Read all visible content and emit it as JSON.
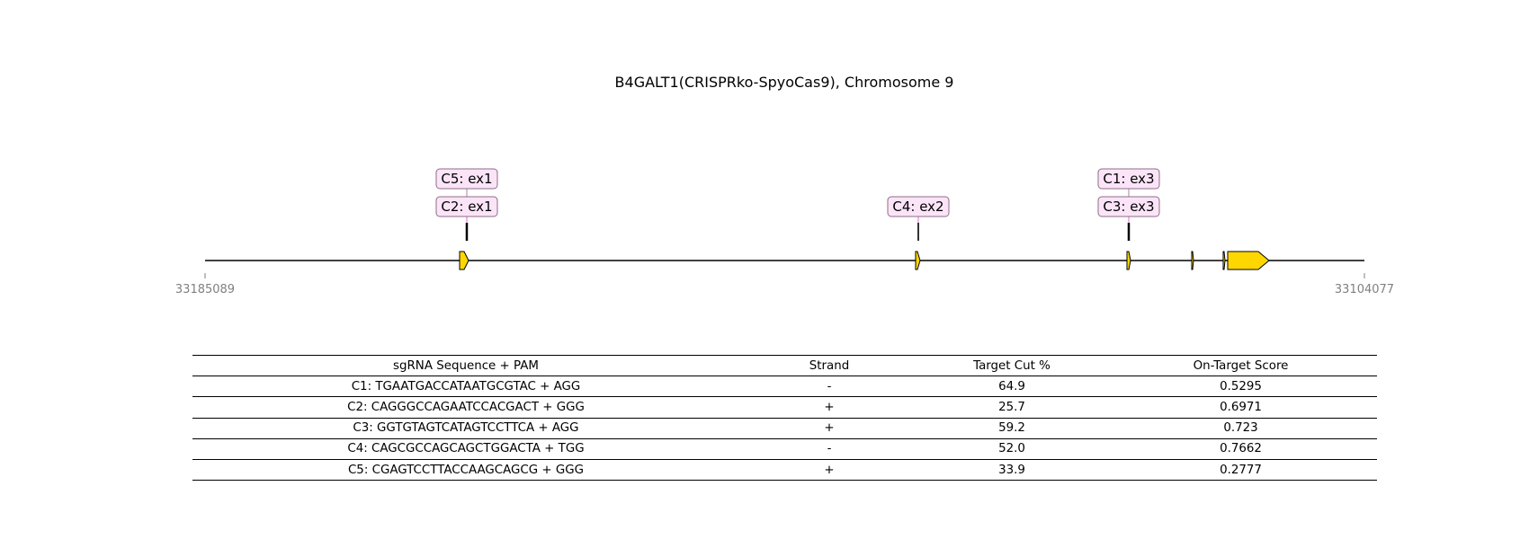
{
  "title": "B4GALT1(CRISPRko-SpyoCas9), Chromosome 9",
  "axis": {
    "left_label": "33185089",
    "right_label": "33104077"
  },
  "colors": {
    "exon_fill": "#ffd700",
    "label_fill": "#fce4f8",
    "label_border": "#8c6d86",
    "axis_label": "#808080",
    "line": "#000000"
  },
  "guide_labels": [
    {
      "id": "C5",
      "text": "C5: ex1",
      "stack_level": 2,
      "exon_index": 0
    },
    {
      "id": "C2",
      "text": "C2: ex1",
      "stack_level": 1,
      "exon_index": 0
    },
    {
      "id": "C4",
      "text": "C4: ex2",
      "stack_level": 1,
      "exon_index": 1
    },
    {
      "id": "C1",
      "text": "C1: ex3",
      "stack_level": 2,
      "exon_index": 2
    },
    {
      "id": "C3",
      "text": "C3: ex3",
      "stack_level": 1,
      "exon_index": 2
    }
  ],
  "table": {
    "headers": [
      "sgRNA Sequence + PAM",
      "Strand",
      "Target Cut %",
      "On-Target Score"
    ],
    "rows": [
      [
        "C1: TGAATGACCATAATGCGTAC + AGG",
        "-",
        "64.9",
        "0.5295"
      ],
      [
        "C2: CAGGGCCAGAATCCACGACT + GGG",
        "+",
        "25.7",
        "0.6971"
      ],
      [
        "C3: GGTGTAGTCATAGTCCTTCA + AGG",
        "+",
        "59.2",
        "0.723"
      ],
      [
        "C4: CAGCGCCAGCAGCTGGACTA + TGG",
        "-",
        "52.0",
        "0.7662"
      ],
      [
        "C5: CGAGTCCTTACCAAGCAGCG + GGG",
        "+",
        "33.9",
        "0.2777"
      ]
    ]
  }
}
